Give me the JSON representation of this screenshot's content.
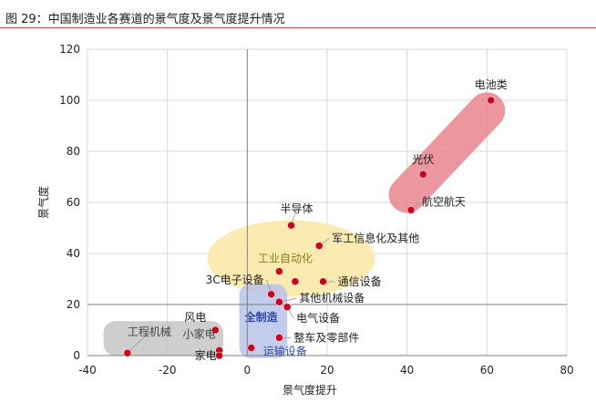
{
  "figure_title": "图 29：中国制造业各赛道的景气度及景气度提升情况",
  "colors": {
    "title_rule": "#c0504d",
    "point": "#d0021b",
    "zone_red": "#e8868c",
    "zone_yellow": "#fce9a8",
    "zone_blue": "#b9c3ea",
    "zone_gray": "#c6c6c6",
    "zone_text_olive": "#8c7a1e",
    "zone_text_blue": "#2f4a9e",
    "zone_text_gray": "#444444"
  },
  "chart_data": {
    "type": "scatter",
    "xlabel": "景气度提升",
    "ylabel": "景气度",
    "xlim": [
      -40,
      80
    ],
    "ylim": [
      0,
      120
    ],
    "x_ticks": [
      -40,
      -20,
      0,
      20,
      40,
      60,
      80
    ],
    "y_ticks": [
      0,
      20,
      40,
      60,
      80,
      100,
      120
    ],
    "grid": true,
    "points": [
      {
        "label": "电池类",
        "x": 61,
        "y": 100
      },
      {
        "label": "光伏",
        "x": 44,
        "y": 71
      },
      {
        "label": "航空航天",
        "x": 41,
        "y": 57
      },
      {
        "label": "半导体",
        "x": 11,
        "y": 51
      },
      {
        "label": "军工信息化及其他",
        "x": 18,
        "y": 43
      },
      {
        "label": "",
        "x": 8,
        "y": 33
      },
      {
        "label": "",
        "x": 12,
        "y": 29
      },
      {
        "label": "通信设备",
        "x": 19,
        "y": 29
      },
      {
        "label": "3C电子设备",
        "x": 6,
        "y": 24
      },
      {
        "label": "其他机械设备",
        "x": 8,
        "y": 21
      },
      {
        "label": "电气设备",
        "x": 10,
        "y": 19
      },
      {
        "label": "风电",
        "x": -8,
        "y": 10
      },
      {
        "label": "整车及零部件",
        "x": 8,
        "y": 7
      },
      {
        "label": "工程机械",
        "x": -30,
        "y": 1
      },
      {
        "label": "小家电",
        "x": -7,
        "y": 2
      },
      {
        "label": "家电",
        "x": -7,
        "y": 0
      },
      {
        "label": "运输设备",
        "x": 1,
        "y": 3
      }
    ],
    "zones": [
      {
        "label": "",
        "color": "red"
      },
      {
        "label": "工业自动化",
        "color": "yellow"
      },
      {
        "label": "全制造",
        "color": "blue"
      },
      {
        "label": "",
        "color": "gray"
      }
    ]
  }
}
